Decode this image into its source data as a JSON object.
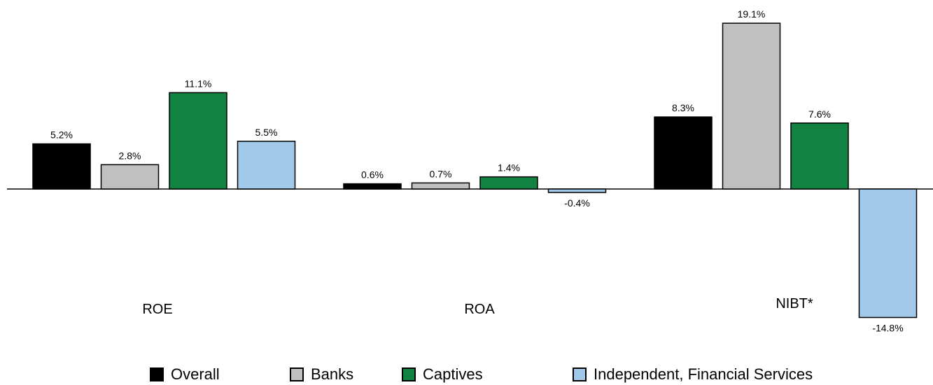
{
  "chart_data": {
    "type": "bar",
    "categories": [
      "ROE",
      "ROA",
      "NIBT*"
    ],
    "series": [
      {
        "name": "Overall",
        "values": [
          5.2,
          0.6,
          8.3
        ],
        "color": "#000000"
      },
      {
        "name": "Banks",
        "values": [
          2.8,
          0.7,
          19.1
        ],
        "color": "#c0c0c0"
      },
      {
        "name": "Captives",
        "values": [
          11.1,
          1.4,
          7.6
        ],
        "color": "#118241"
      },
      {
        "name": "Independent, Financial Services",
        "values": [
          5.5,
          -0.4,
          -14.8
        ],
        "color": "#a2c9ea"
      }
    ],
    "value_labels": [
      [
        "5.2%",
        "0.6%",
        "8.3%"
      ],
      [
        "2.8%",
        "0.7%",
        "19.1%"
      ],
      [
        "11.1%",
        "1.4%",
        "7.6%"
      ],
      [
        "5.5%",
        "-0.4%",
        "-14.8%"
      ]
    ],
    "title": "",
    "xlabel": "",
    "ylabel": "",
    "legend_position": "bottom",
    "grid": false
  }
}
